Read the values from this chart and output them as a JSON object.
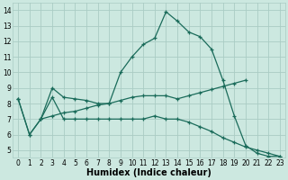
{
  "xlabel": "Humidex (Indice chaleur)",
  "xlim": [
    -0.5,
    23.5
  ],
  "ylim": [
    4.5,
    14.5
  ],
  "xticks": [
    0,
    1,
    2,
    3,
    4,
    5,
    6,
    7,
    8,
    9,
    10,
    11,
    12,
    13,
    14,
    15,
    16,
    17,
    18,
    19,
    20,
    21,
    22,
    23
  ],
  "yticks": [
    5,
    6,
    7,
    8,
    9,
    10,
    11,
    12,
    13,
    14
  ],
  "background_color": "#cce8e0",
  "grid_color": "#aaccC4",
  "line_color": "#1a6b5a",
  "lines": [
    {
      "x": [
        0,
        1,
        2,
        3,
        4,
        5,
        6,
        7,
        8,
        9,
        10,
        11,
        12,
        13,
        14,
        15,
        16,
        17,
        18,
        19,
        20,
        21,
        22,
        23
      ],
      "y": [
        8.3,
        6.0,
        7.0,
        9.0,
        8.4,
        8.3,
        8.2,
        8.0,
        8.0,
        10.0,
        11.0,
        11.8,
        12.2,
        13.9,
        13.3,
        12.6,
        12.3,
        11.5,
        9.5,
        7.2,
        5.3,
        4.8,
        4.6,
        4.6
      ]
    },
    {
      "x": [
        0,
        1,
        2,
        3,
        4,
        5,
        6,
        7,
        8,
        9,
        10,
        11,
        12,
        13,
        14,
        15,
        16,
        17,
        18,
        19,
        20,
        21,
        22,
        23
      ],
      "y": [
        8.3,
        6.0,
        7.0,
        8.4,
        7.0,
        7.0,
        7.0,
        7.0,
        7.0,
        7.0,
        7.0,
        7.0,
        7.2,
        7.0,
        7.0,
        6.8,
        6.5,
        6.2,
        5.8,
        5.5,
        5.2,
        5.0,
        4.8,
        4.6
      ]
    },
    {
      "x": [
        2,
        3,
        4,
        5,
        6,
        7,
        8,
        9,
        10,
        11,
        12,
        13,
        14,
        15,
        16,
        17,
        18,
        19,
        20
      ],
      "y": [
        7.0,
        7.2,
        7.4,
        7.5,
        7.7,
        7.9,
        8.0,
        8.2,
        8.4,
        8.5,
        8.5,
        8.5,
        8.3,
        8.5,
        8.7,
        8.9,
        9.1,
        9.3,
        9.5
      ]
    }
  ]
}
